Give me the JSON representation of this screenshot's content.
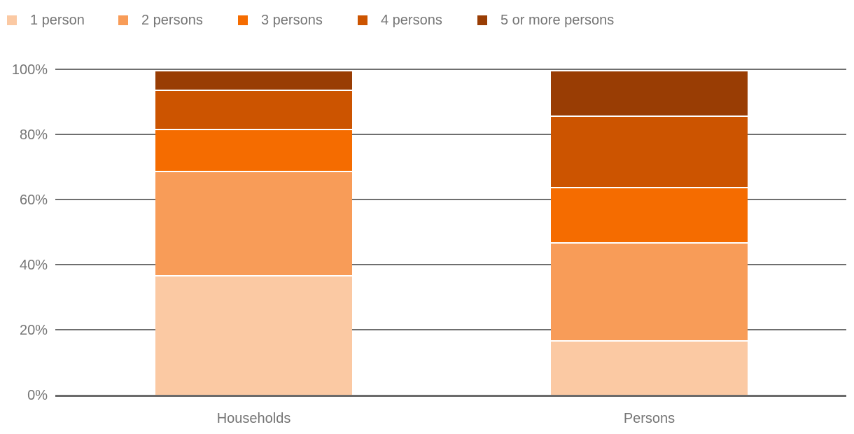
{
  "chart_data": {
    "type": "bar",
    "stacked": true,
    "percent": true,
    "title": "",
    "xlabel": "",
    "ylabel": "",
    "categories": [
      "Households",
      "Persons"
    ],
    "series": [
      {
        "name": "1 person",
        "color": "#fbc9a3",
        "values": [
          37,
          17
        ]
      },
      {
        "name": "2 persons",
        "color": "#f89c58",
        "values": [
          32,
          30
        ]
      },
      {
        "name": "3 persons",
        "color": "#f56c00",
        "values": [
          13,
          17
        ]
      },
      {
        "name": "4 persons",
        "color": "#cc5400",
        "values": [
          12,
          22
        ]
      },
      {
        "name": "5 or more persons",
        "color": "#993d04",
        "values": [
          6,
          14
        ]
      }
    ],
    "ylim": [
      0,
      100
    ],
    "ytick_labels": [
      "0%",
      "20%",
      "40%",
      "60%",
      "80%",
      "100%"
    ],
    "grid": true,
    "legend_position": "top"
  },
  "colors": {
    "background": "#ffffff",
    "gridline": "#6f6f6f",
    "axis_line": "#6b6b6b",
    "axis_text": "#757575",
    "legend_text": "#757575",
    "segment_border": "#ffffff"
  }
}
